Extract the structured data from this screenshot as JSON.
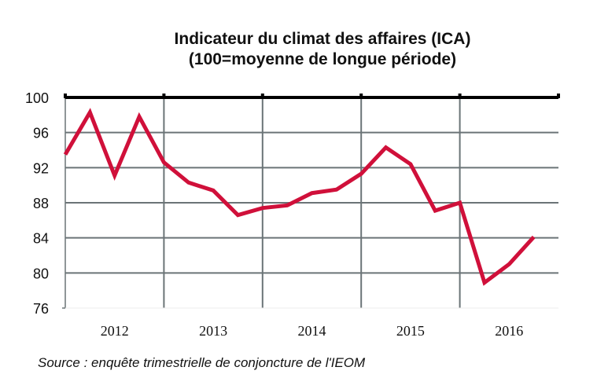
{
  "chart_data": {
    "type": "line",
    "title": "Indicateur du climat des affaires (ICA)",
    "subtitle": "(100=moyenne de longue période)",
    "xlabel": "",
    "ylabel": "",
    "ylim": [
      76,
      100
    ],
    "yticks": [
      76,
      80,
      84,
      88,
      92,
      96,
      100
    ],
    "categories": [
      "2012",
      "2013",
      "2014",
      "2015",
      "2016"
    ],
    "grid": true,
    "reference_line": 100,
    "series": [
      {
        "color": "#d0103a",
        "x": [
          "2012T1",
          "2012T2",
          "2012T3",
          "2012T4",
          "2013T1",
          "2013T2",
          "2013T3",
          "2013T4",
          "2014T1",
          "2014T2",
          "2014T3",
          "2014T4",
          "2015T1",
          "2015T2",
          "2015T3",
          "2015T4",
          "2016T1",
          "2016T2",
          "2016T3",
          "2016T4"
        ],
        "values": [
          93.5,
          98.3,
          91.1,
          97.8,
          92.6,
          90.3,
          89.4,
          86.6,
          87.4,
          87.7,
          89.1,
          89.5,
          91.3,
          94.3,
          92.4,
          87.1,
          88.0,
          78.9,
          81.0,
          84.1
        ]
      }
    ],
    "source": "Source : enquête trimestrielle de conjoncture de l'IEOM"
  }
}
